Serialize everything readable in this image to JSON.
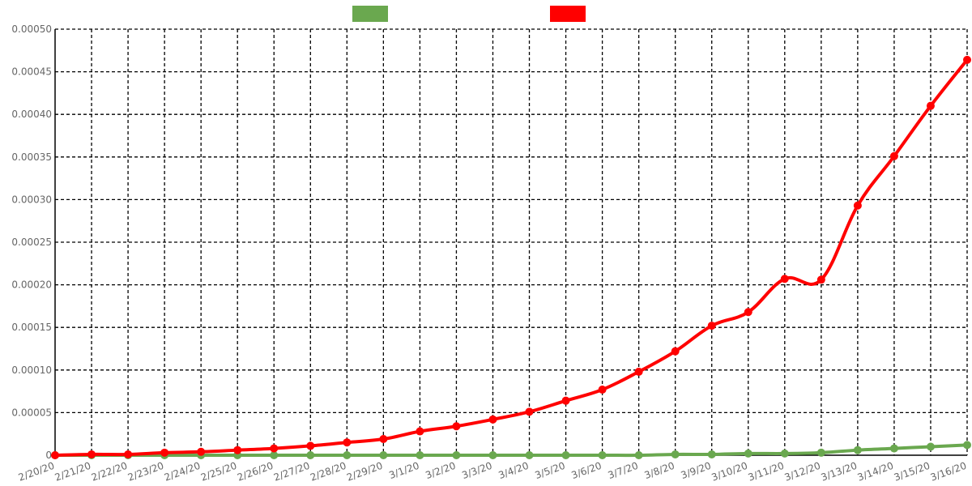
{
  "chart_data": {
    "type": "line",
    "title": "",
    "xlabel": "",
    "ylabel": "",
    "grid": true,
    "legend_placement": "top-center",
    "ylim": [
      0,
      0.0005
    ],
    "y_ticks": [
      "0",
      "0.00005",
      "0.00010",
      "0.00015",
      "0.00020",
      "0.00025",
      "0.00030",
      "0.00035",
      "0.00040",
      "0.00045",
      "0.00050"
    ],
    "categories": [
      "2/20/20",
      "2/21/20",
      "2/22/20",
      "2/23/20",
      "2/24/20",
      "2/25/20",
      "2/26/20",
      "2/27/20",
      "2/28/20",
      "2/29/20",
      "3/1/20",
      "3/2/20",
      "3/3/20",
      "3/4/20",
      "3/5/20",
      "3/6/20",
      "3/7/20",
      "3/8/20",
      "3/9/20",
      "3/10/20",
      "3/11/20",
      "3/12/20",
      "3/13/20",
      "3/14/20",
      "3/15/20",
      "3/16/20"
    ],
    "series": [
      {
        "name": "",
        "color": "#6aa84f",
        "values": [
          0,
          0,
          0,
          0,
          0,
          0,
          0,
          0,
          0,
          0,
          0,
          0,
          0,
          0,
          0,
          0,
          0,
          1e-06,
          1e-06,
          2e-06,
          2e-06,
          3e-06,
          6e-06,
          8e-06,
          1e-05,
          1.2e-05
        ]
      },
      {
        "name": "",
        "color": "#ff0000",
        "values": [
          0,
          1e-06,
          1e-06,
          3e-06,
          4e-06,
          6e-06,
          8e-06,
          1.1e-05,
          1.5e-05,
          1.9e-05,
          2.8e-05,
          3.4e-05,
          4.2e-05,
          5.1e-05,
          6.4e-05,
          7.7e-05,
          9.8e-05,
          0.000122,
          0.000152,
          0.000168,
          0.000207,
          0.000206,
          0.000293,
          0.000351,
          0.00041,
          0.000464
        ]
      }
    ]
  }
}
